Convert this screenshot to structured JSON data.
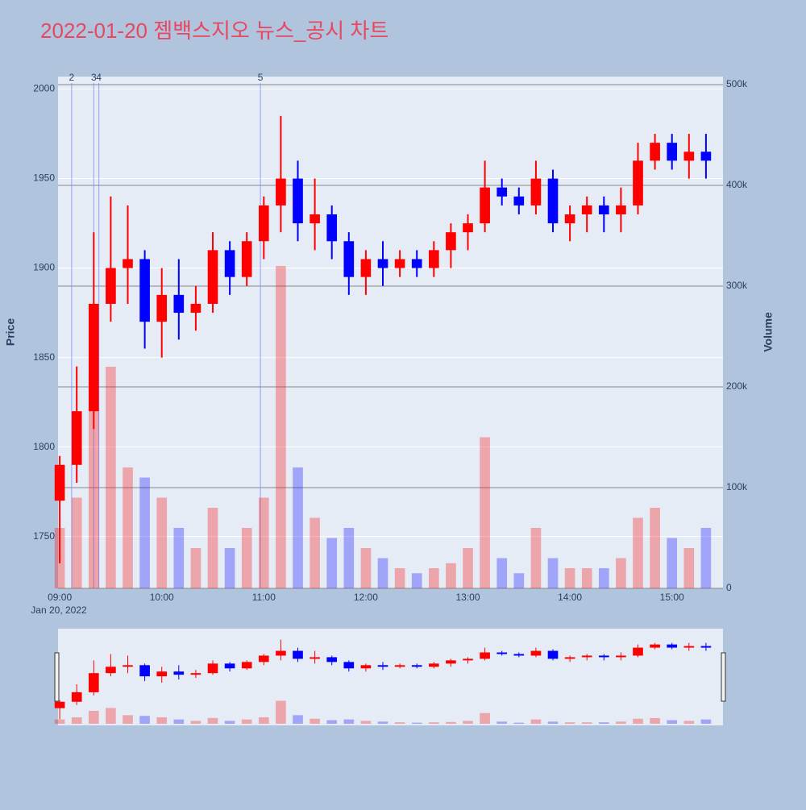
{
  "chart_data": {
    "type": "candlestick",
    "title": "2022-01-20 젬백스지오 뉴스_공시 차트",
    "y_label": "Price",
    "y2_label": "Volume",
    "date_label": "Jan 20, 2022",
    "up_color": "#ff0000",
    "down_color": "#0000ff",
    "x": [
      "09:00",
      "09:10",
      "09:20",
      "09:30",
      "09:40",
      "09:50",
      "10:00",
      "10:10",
      "10:20",
      "10:30",
      "10:40",
      "10:50",
      "11:00",
      "11:10",
      "11:20",
      "11:30",
      "11:40",
      "11:50",
      "12:00",
      "12:10",
      "12:20",
      "12:30",
      "12:40",
      "12:50",
      "13:00",
      "13:10",
      "13:20",
      "13:30",
      "13:40",
      "13:50",
      "14:00",
      "14:10",
      "14:20",
      "14:30",
      "14:40",
      "14:50",
      "15:00",
      "15:10",
      "15:20"
    ],
    "open": [
      1770,
      1790,
      1820,
      1880,
      1900,
      1905,
      1870,
      1885,
      1875,
      1880,
      1910,
      1895,
      1915,
      1935,
      1950,
      1925,
      1930,
      1915,
      1895,
      1905,
      1900,
      1905,
      1900,
      1910,
      1920,
      1925,
      1945,
      1940,
      1935,
      1950,
      1925,
      1930,
      1935,
      1930,
      1935,
      1960,
      1970,
      1960,
      1965
    ],
    "high": [
      1795,
      1845,
      1920,
      1940,
      1935,
      1910,
      1900,
      1905,
      1890,
      1920,
      1915,
      1920,
      1940,
      1985,
      1960,
      1950,
      1935,
      1920,
      1910,
      1915,
      1910,
      1910,
      1915,
      1925,
      1930,
      1960,
      1950,
      1945,
      1960,
      1955,
      1935,
      1940,
      1940,
      1945,
      1970,
      1975,
      1975,
      1975,
      1975
    ],
    "low": [
      1735,
      1780,
      1810,
      1870,
      1880,
      1855,
      1850,
      1860,
      1865,
      1875,
      1885,
      1890,
      1905,
      1920,
      1915,
      1910,
      1905,
      1885,
      1885,
      1890,
      1895,
      1895,
      1895,
      1900,
      1910,
      1920,
      1935,
      1930,
      1930,
      1920,
      1915,
      1920,
      1920,
      1920,
      1930,
      1955,
      1955,
      1950,
      1950
    ],
    "close": [
      1790,
      1820,
      1880,
      1900,
      1905,
      1870,
      1885,
      1875,
      1880,
      1910,
      1895,
      1915,
      1935,
      1950,
      1925,
      1930,
      1915,
      1895,
      1905,
      1900,
      1905,
      1900,
      1910,
      1920,
      1925,
      1945,
      1940,
      1935,
      1950,
      1925,
      1930,
      1935,
      1930,
      1935,
      1960,
      1970,
      1960,
      1965,
      1960
    ],
    "volume": [
      60000,
      90000,
      180000,
      220000,
      120000,
      110000,
      90000,
      60000,
      40000,
      80000,
      40000,
      60000,
      90000,
      320000,
      120000,
      70000,
      50000,
      60000,
      40000,
      30000,
      20000,
      15000,
      20000,
      25000,
      40000,
      150000,
      30000,
      15000,
      60000,
      30000,
      20000,
      20000,
      20000,
      30000,
      70000,
      80000,
      50000,
      40000,
      60000
    ],
    "xlim": [
      "08:59",
      "15:30"
    ],
    "xticks": [
      "09:00",
      "10:00",
      "11:00",
      "12:00",
      "13:00",
      "14:00",
      "15:00"
    ],
    "ylim": [
      1721,
      2007
    ],
    "yticks": [
      1750,
      1800,
      1850,
      1900,
      1950,
      2000
    ],
    "y2lim": [
      0,
      508000
    ],
    "y2ticks": [
      {
        "value": 0,
        "label": "0"
      },
      {
        "value": 100000,
        "label": "100k"
      },
      {
        "value": 200000,
        "label": "200k"
      },
      {
        "value": 300000,
        "label": "300k"
      },
      {
        "value": 400000,
        "label": "400k"
      },
      {
        "value": 500000,
        "label": "500k"
      }
    ],
    "annotations": [
      {
        "x": "09:07",
        "label": "2"
      },
      {
        "x": "09:20",
        "label": "3"
      },
      {
        "x": "09:23",
        "label": "4"
      },
      {
        "x": "10:58",
        "label": "5"
      }
    ],
    "grid": true
  }
}
